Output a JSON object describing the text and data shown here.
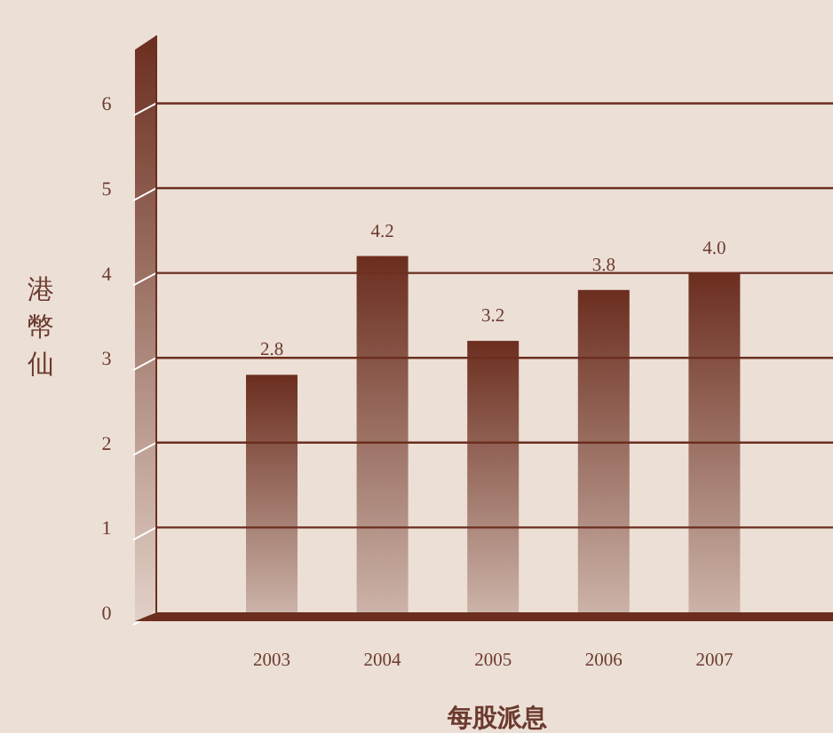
{
  "chart_data": {
    "type": "bar",
    "xlabel": "每股派息",
    "ylabel": "港幣仙",
    "categories": [
      "2003",
      "2004",
      "2005",
      "2006",
      "2007"
    ],
    "values": [
      2.8,
      4.2,
      3.2,
      3.8,
      4.0
    ],
    "color": "#6b2e1f",
    "ylim": [
      0,
      6.8
    ],
    "yticks": [
      0,
      1,
      2,
      3,
      4,
      5,
      6
    ],
    "grid": "y",
    "value_labels": [
      "2.8",
      "4.2",
      "3.2",
      "3.8",
      "4.0"
    ]
  }
}
